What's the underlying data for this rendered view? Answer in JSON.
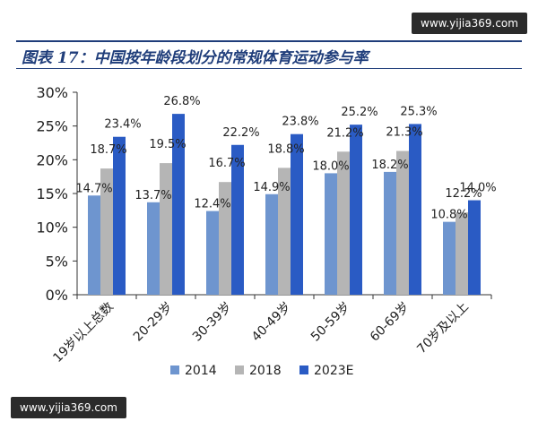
{
  "title": "图表 17：中国按年龄段划分的常规体育运动参与率",
  "watermark_top": "www.yijia369.com",
  "watermark_bottom": "www.yijia369.com",
  "chart_data": {
    "type": "bar",
    "categories": [
      "19岁以上总数",
      "20-29岁",
      "30-39岁",
      "40-49岁",
      "50-59岁",
      "60-69岁",
      "70岁及以上"
    ],
    "series": [
      {
        "name": "2014",
        "color": "#6e95cf",
        "values": [
          14.7,
          13.7,
          12.4,
          14.9,
          18.0,
          18.2,
          10.8
        ]
      },
      {
        "name": "2018",
        "color": "#b5b5b5",
        "values": [
          18.7,
          19.5,
          16.7,
          18.8,
          21.2,
          21.3,
          12.2
        ]
      },
      {
        "name": "2023E",
        "color": "#2a5bc4",
        "values": [
          23.4,
          26.8,
          22.2,
          23.8,
          25.2,
          25.3,
          14.0
        ]
      }
    ],
    "value_labels": [
      [
        "14.7%",
        "13.7%",
        "12.4%",
        "14.9%",
        "18.0%",
        "18.2%",
        "10.8%"
      ],
      [
        "18.7%",
        "19.5%",
        "16.7%",
        "18.8%",
        "21.2%",
        "21.3%",
        "12.2%"
      ],
      [
        "23.4%",
        "26.8%",
        "22.2%",
        "23.8%",
        "25.2%",
        "25.3%",
        "14.0%"
      ]
    ],
    "yticks": [
      "0%",
      "5%",
      "10%",
      "15%",
      "20%",
      "25%",
      "30%"
    ],
    "ylim": [
      0,
      30
    ],
    "grid": false,
    "legend_position": "bottom",
    "xlabel": "",
    "ylabel": ""
  }
}
